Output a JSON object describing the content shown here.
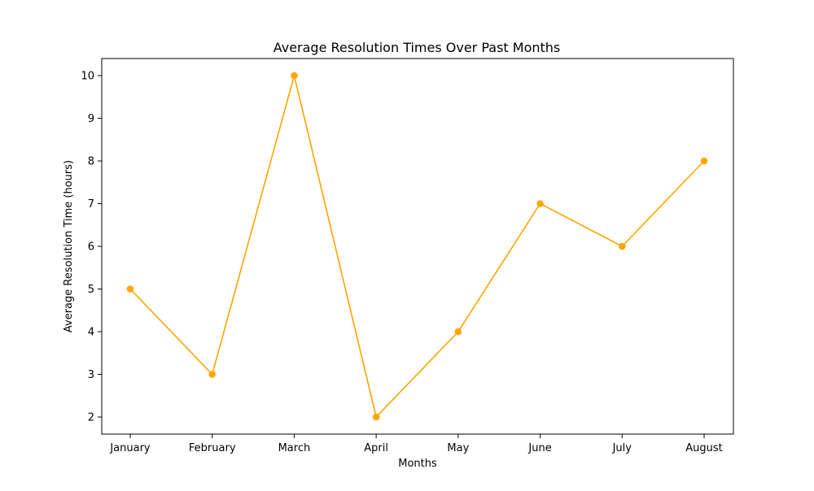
{
  "chart_data": {
    "type": "line",
    "title": "Average Resolution Times Over Past Months",
    "xlabel": "Months",
    "ylabel": "Average Resolution Time (hours)",
    "categories": [
      "January",
      "February",
      "March",
      "April",
      "May",
      "June",
      "July",
      "August"
    ],
    "series": [
      {
        "values": [
          5,
          3,
          10,
          2,
          4,
          7,
          6,
          8
        ]
      }
    ],
    "ylim": [
      1.6,
      10.4
    ],
    "yticks": [
      2,
      3,
      4,
      5,
      6,
      7,
      8,
      9,
      10
    ],
    "grid": false,
    "legend": "none",
    "colors": {
      "line": "#FFA500",
      "marker": "#FFA500",
      "axes": "#000000"
    }
  }
}
